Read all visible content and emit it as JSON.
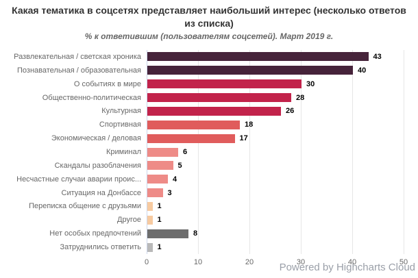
{
  "chart_data": {
    "type": "bar",
    "title": "Какая тематика в соцсетях представляет наибольший интерес (несколько ответов из списка)",
    "subtitle": "% к ответившим (пользователям соцсетей). Март 2019 г.",
    "categories": [
      "Развлекательная / светская хроника",
      "Познавательная / образовательная",
      "О событиях в мире",
      "Общественно-политическая",
      "Культурная",
      "Спортивная",
      "Экономическая / деловая",
      "Криминал",
      "Скандалы разоблачения",
      "Несчастные случаи аварии проис...",
      "Ситуация на Донбассе",
      "Переписка общение с друзьями",
      "Другое",
      "Нет особых предпочтений",
      "Затруднились ответить"
    ],
    "values": [
      43,
      40,
      30,
      28,
      26,
      18,
      17,
      6,
      5,
      4,
      3,
      1,
      1,
      8,
      1
    ],
    "bar_colors": [
      "#46233a",
      "#46233a",
      "#c2234b",
      "#c2234b",
      "#c2234b",
      "#e05c5c",
      "#e05c5c",
      "#ee8b87",
      "#ee8b87",
      "#ee8b87",
      "#ee8b87",
      "#f7caa0",
      "#f7caa0",
      "#6d6d6d",
      "#b9b9b9"
    ],
    "xlabel": "",
    "ylabel": "",
    "xlim": [
      0,
      50
    ],
    "ticks": [
      0,
      10,
      20,
      30,
      40,
      50
    ],
    "grid": true,
    "legend": false,
    "data_labels": true,
    "credits": "Powered by Highcharts Cloud"
  },
  "colors": {
    "title": "#333333",
    "subtitle": "#666666",
    "category_label": "#666666",
    "value_label": "#000000",
    "gridline": "#e6e6e6",
    "axis_line": "#ccd6eb",
    "credits": "#9a9fa8",
    "background": "#ffffff"
  }
}
